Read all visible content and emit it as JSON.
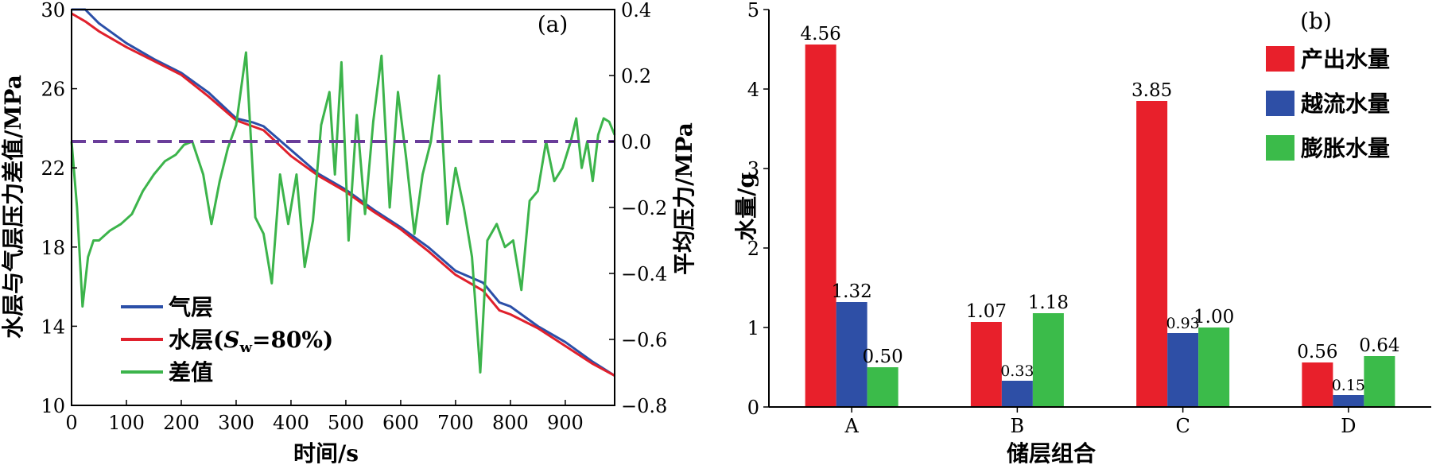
{
  "chart_data": [
    {
      "type": "line",
      "panel_label": "(a)",
      "xlabel": "时间/s",
      "ylabel": "水层与气层压力差值/MPa",
      "y2label": "平均压力/MPa",
      "xlim": [
        0,
        990
      ],
      "ylim": [
        10,
        30
      ],
      "y2lim": [
        -0.8,
        0.4
      ],
      "xticks": [
        "0",
        "100",
        "200",
        "300",
        "400",
        "500",
        "600",
        "700",
        "800",
        "900"
      ],
      "yticks": [
        "10",
        "14",
        "18",
        "22",
        "26",
        "30"
      ],
      "y2ticks": [
        "−0.8",
        "−0.6",
        "−0.4",
        "−0.2",
        "0.0",
        "0.2",
        "0.4"
      ],
      "legend": {
        "placement": "bottom-left",
        "entries": [
          {
            "label": "气层",
            "color": "#2b4fa8"
          },
          {
            "label_main": "水层(",
            "label_sym": "S",
            "label_sub": "w",
            "label_tail": "=80%)",
            "color": "#e0202c"
          },
          {
            "label": "差值",
            "color": "#3cb44b"
          }
        ]
      },
      "reference_line": {
        "axis": "y2",
        "value": 0.0,
        "color": "#6a3d9a",
        "style": "dashed"
      },
      "series": [
        {
          "key": "gas",
          "color": "#2b4fa8",
          "axis": "y",
          "x": [
            0,
            25,
            50,
            100,
            150,
            200,
            250,
            300,
            330,
            350,
            400,
            450,
            500,
            550,
            600,
            650,
            700,
            750,
            780,
            800,
            850,
            900,
            950,
            990
          ],
          "y": [
            30,
            30,
            29.3,
            28.3,
            27.5,
            26.8,
            25.8,
            24.5,
            24.3,
            24.1,
            22.9,
            21.7,
            20.9,
            19.9,
            19.0,
            18.0,
            16.8,
            16.2,
            15.2,
            15.0,
            14.0,
            13.2,
            12.2,
            11.5
          ]
        },
        {
          "key": "water",
          "color": "#e0202c",
          "axis": "y",
          "x": [
            0,
            25,
            50,
            100,
            150,
            200,
            250,
            300,
            330,
            350,
            400,
            450,
            500,
            550,
            600,
            650,
            700,
            750,
            780,
            800,
            850,
            900,
            950,
            990
          ],
          "y": [
            29.8,
            29.4,
            28.9,
            28.1,
            27.4,
            26.7,
            25.6,
            24.4,
            24.1,
            23.9,
            22.6,
            21.6,
            20.8,
            19.8,
            18.9,
            17.8,
            16.6,
            15.8,
            14.8,
            14.6,
            13.9,
            13.0,
            12.1,
            11.5
          ]
        },
        {
          "key": "diff",
          "color": "#3cb44b",
          "axis": "y2",
          "x": [
            0,
            10,
            20,
            30,
            40,
            50,
            70,
            90,
            110,
            130,
            150,
            170,
            190,
            205,
            220,
            240,
            255,
            270,
            285,
            300,
            318,
            335,
            350,
            365,
            380,
            395,
            410,
            425,
            440,
            455,
            470,
            480,
            492,
            505,
            520,
            535,
            550,
            565,
            580,
            595,
            610,
            625,
            640,
            655,
            670,
            685,
            700,
            715,
            730,
            745,
            758,
            775,
            790,
            805,
            820,
            835,
            850,
            865,
            880,
            895,
            910,
            920,
            930,
            940,
            950,
            960,
            970,
            980,
            990
          ],
          "y": [
            0.0,
            -0.2,
            -0.5,
            -0.35,
            -0.3,
            -0.3,
            -0.27,
            -0.25,
            -0.22,
            -0.15,
            -0.1,
            -0.06,
            -0.04,
            -0.01,
            0.0,
            -0.1,
            -0.25,
            -0.12,
            -0.02,
            0.05,
            0.27,
            -0.23,
            -0.28,
            -0.43,
            -0.1,
            -0.25,
            -0.1,
            -0.38,
            -0.24,
            0.05,
            0.15,
            -0.1,
            0.24,
            -0.3,
            0.08,
            -0.22,
            0.06,
            0.26,
            -0.2,
            0.15,
            -0.05,
            -0.28,
            -0.1,
            0.0,
            0.2,
            -0.25,
            -0.08,
            -0.2,
            -0.35,
            -0.7,
            -0.3,
            -0.25,
            -0.32,
            -0.3,
            -0.45,
            -0.18,
            -0.15,
            0.0,
            -0.12,
            -0.08,
            0.0,
            0.07,
            -0.08,
            0.0,
            -0.12,
            0.02,
            0.07,
            0.06,
            0.02
          ]
        }
      ]
    },
    {
      "type": "bar",
      "panel_label": "(b)",
      "xlabel": "储层组合",
      "ylabel": "水量/g",
      "ylim": [
        0,
        5
      ],
      "yticks": [
        "0",
        "1",
        "2",
        "3",
        "4",
        "5"
      ],
      "categories": [
        "A",
        "B",
        "C",
        "D"
      ],
      "legend": {
        "placement": "top-right"
      },
      "series": [
        {
          "name": "产出水量",
          "color": "#e8202b",
          "values": [
            4.56,
            1.07,
            3.85,
            0.56
          ],
          "labels": [
            "4.56",
            "1.07",
            "3.85",
            "0.56"
          ]
        },
        {
          "name": "越流水量",
          "color": "#2e4fa6",
          "values": [
            1.32,
            0.33,
            0.93,
            0.15
          ],
          "labels": [
            "1.32",
            "0.33",
            "0.93",
            "0.15"
          ]
        },
        {
          "name": "膨胀水量",
          "color": "#3bbb4a",
          "values": [
            0.5,
            1.18,
            1.0,
            0.64
          ],
          "labels": [
            "0.50",
            "1.18",
            "1.00",
            "0.64"
          ]
        }
      ]
    }
  ]
}
